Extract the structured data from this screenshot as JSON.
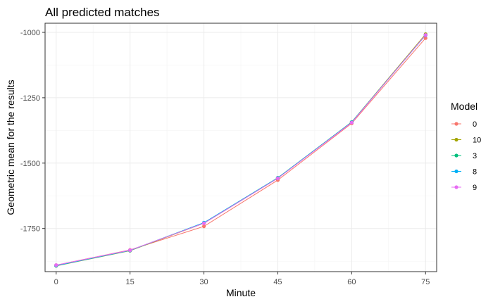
{
  "chart_data": {
    "type": "line",
    "title": "All predicted matches",
    "xlabel": "Minute",
    "ylabel": "Geometric mean for the results",
    "x": [
      0,
      15,
      30,
      45,
      60,
      75
    ],
    "xlim": [
      -2.25,
      77.25
    ],
    "ylim": [
      -1915,
      -965
    ],
    "x_ticks": [
      0,
      15,
      30,
      45,
      60,
      75
    ],
    "y_ticks": [
      -1750,
      -1500,
      -1250,
      -1000
    ],
    "grid": true,
    "legend": {
      "title": "Model",
      "position": "right"
    },
    "series": [
      {
        "name": "0",
        "color": "#F8766D",
        "values": [
          -1890,
          -1832,
          -1742,
          -1565,
          -1348,
          -1022
        ]
      },
      {
        "name": "10",
        "color": "#A3A500",
        "values": [
          -1893,
          -1835,
          -1730,
          -1558,
          -1343,
          -1007
        ]
      },
      {
        "name": "3",
        "color": "#00BF7D",
        "values": [
          -1892,
          -1834,
          -1728,
          -1556,
          -1343,
          -1010
        ]
      },
      {
        "name": "8",
        "color": "#00B0F6",
        "values": [
          -1892,
          -1834,
          -1728,
          -1557,
          -1344,
          -1011
        ]
      },
      {
        "name": "9",
        "color": "#E76BF3",
        "values": [
          -1890,
          -1833,
          -1730,
          -1558,
          -1345,
          -1010
        ]
      }
    ]
  }
}
